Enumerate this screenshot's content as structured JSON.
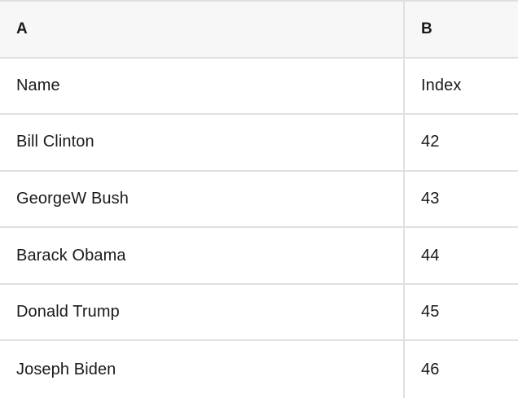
{
  "table": {
    "columns": [
      {
        "label": "A"
      },
      {
        "label": "B"
      }
    ],
    "rows": [
      {
        "cells": [
          "Name",
          "Index"
        ]
      },
      {
        "cells": [
          "Bill Clinton",
          "42"
        ]
      },
      {
        "cells": [
          "GeorgeW Bush",
          "43"
        ]
      },
      {
        "cells": [
          "Barack Obama",
          "44"
        ]
      },
      {
        "cells": [
          "Donald Trump",
          "45"
        ]
      },
      {
        "cells": [
          "Joseph Biden",
          "46"
        ]
      }
    ]
  },
  "colors": {
    "header_bg": "#f7f7f7",
    "border": "#e0e0e0",
    "text": "#1a1a1a"
  }
}
